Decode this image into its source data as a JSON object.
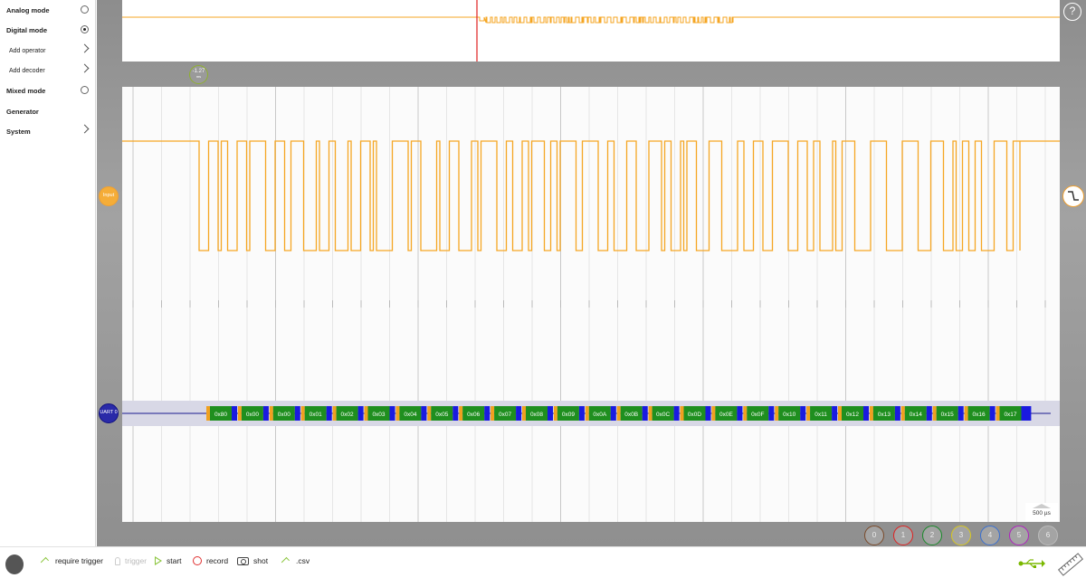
{
  "sidebar": {
    "items": [
      {
        "label": "Analog mode",
        "control": "radio",
        "selected": false
      },
      {
        "label": "Digital mode",
        "control": "radio",
        "selected": true
      },
      {
        "label": "Add operator",
        "control": "chevron"
      },
      {
        "label": "Add decoder",
        "control": "chevron"
      },
      {
        "label": "Mixed mode",
        "control": "radio",
        "selected": false
      },
      {
        "label": "Generator",
        "control": "none"
      },
      {
        "label": "System",
        "control": "chevron"
      }
    ]
  },
  "help": {
    "label": "?"
  },
  "cursor_marker": {
    "value": "-1.27",
    "unit": "ms"
  },
  "channels": {
    "input_label": "Input",
    "uart_label": "UART 0"
  },
  "uart_bytes": [
    "0x80",
    "0x00",
    "0x00",
    "0x01",
    "0x02",
    "0x03",
    "0x04",
    "0x05",
    "0x06",
    "0x07",
    "0x08",
    "0x09",
    "0x0A",
    "0x0B",
    "0x0C",
    "0x0D",
    "0x0E",
    "0x0F",
    "0x10",
    "0x11",
    "0x12",
    "0x13",
    "0x14",
    "0x15",
    "0x16",
    "0x17"
  ],
  "timebase": {
    "label": "500 µs"
  },
  "channel_buttons": [
    {
      "label": "0",
      "color": "#7a4a2a"
    },
    {
      "label": "1",
      "color": "#e02020"
    },
    {
      "label": "2",
      "color": "#1a8a2a"
    },
    {
      "label": "3",
      "color": "#d8c820"
    },
    {
      "label": "4",
      "color": "#3a70d0"
    },
    {
      "label": "5",
      "color": "#b020c0"
    },
    {
      "label": "6",
      "color": "#bbbbbb"
    }
  ],
  "bottombar": {
    "require_trigger": "require trigger",
    "trigger": "trigger",
    "start": "start",
    "record": "record",
    "shot": "shot",
    "csv": ".csv"
  },
  "colors": {
    "signal": "#f5a623",
    "frame_green": "#1f8f1f",
    "frame_blue": "#1a1ae0",
    "frame_orange": "#f0a020",
    "uart_line": "#1a1a90",
    "trigger_cursor": "#e02020"
  }
}
